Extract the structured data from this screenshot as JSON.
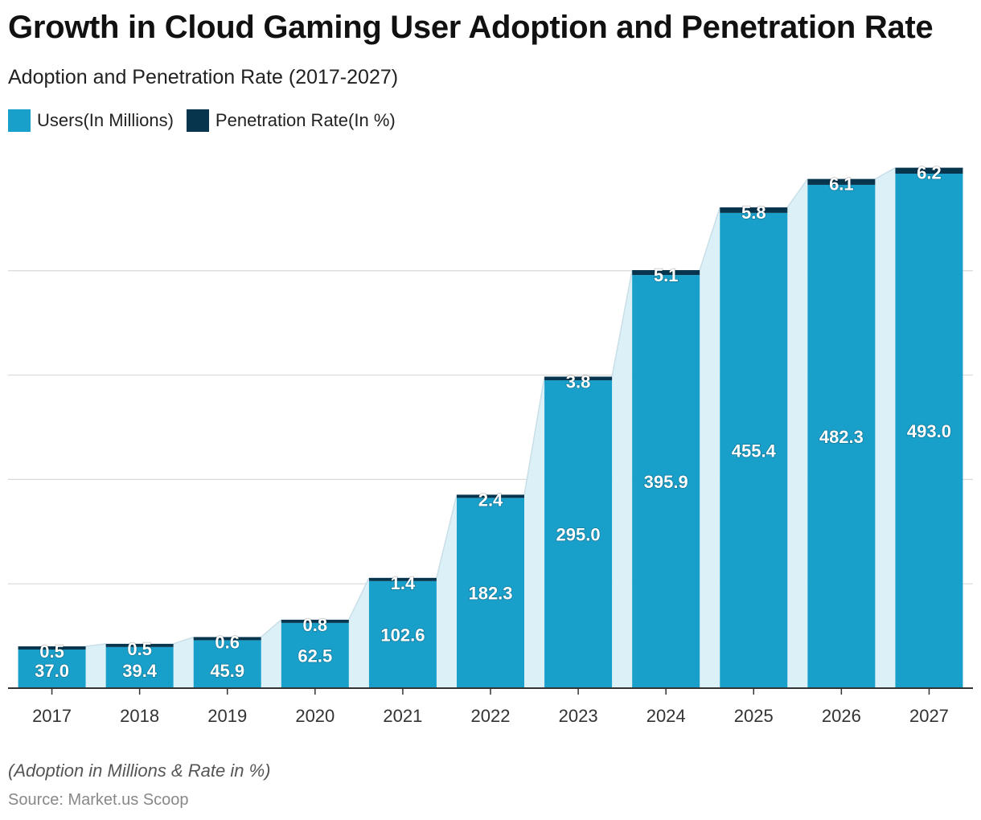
{
  "header": {
    "title": "Growth in Cloud Gaming User Adoption and Penetration Rate",
    "subtitle": "Adoption and Penetration Rate (2017-2027)"
  },
  "legend": [
    {
      "label": "Users(In Millions)",
      "color": "#18a0cb"
    },
    {
      "label": "Penetration Rate(In %)",
      "color": "#07354d"
    }
  ],
  "footer": {
    "note": "(Adoption in Millions & Rate in %)",
    "source": "Source: Market.us Scoop"
  },
  "chart_data": {
    "type": "bar",
    "stacked": true,
    "categories": [
      "2017",
      "2018",
      "2019",
      "2020",
      "2021",
      "2022",
      "2023",
      "2024",
      "2025",
      "2026",
      "2027"
    ],
    "series": [
      {
        "name": "Users(In Millions)",
        "color": "#18a0cb",
        "values": [
          37.0,
          39.4,
          45.9,
          62.5,
          102.6,
          182.3,
          295.0,
          395.9,
          455.4,
          482.3,
          493.0
        ],
        "labels": [
          "37.0",
          "39.4",
          "45.9",
          "62.5",
          "102.6",
          "182.3",
          "295.0",
          "395.9",
          "455.4",
          "482.3",
          "493.0"
        ]
      },
      {
        "name": "Penetration Rate(In %)",
        "color": "#07354d",
        "values": [
          0.5,
          0.5,
          0.6,
          0.8,
          1.4,
          2.4,
          3.8,
          5.1,
          5.8,
          6.1,
          6.2
        ],
        "labels": [
          "0.5",
          "0.5",
          "0.6",
          "0.8",
          "1.4",
          "2.4",
          "3.8",
          "5.1",
          "5.8",
          "6.1",
          "6.2"
        ]
      }
    ],
    "ylim": [
      0,
      500
    ],
    "yticks": [
      0,
      100,
      200,
      300,
      400
    ],
    "grid": true,
    "legend_position": "top-left",
    "connector_area_color": "#dcf0f7"
  }
}
